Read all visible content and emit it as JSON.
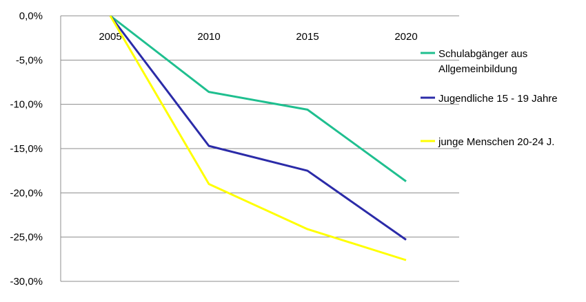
{
  "chart_data": {
    "type": "line",
    "categories": [
      "2005",
      "2010",
      "2015",
      "2020"
    ],
    "y_tick_labels": [
      "0,0%",
      "-5,0%",
      "-10,0%",
      "-15,0%",
      "-20,0%",
      "-25,0%",
      "-30,0%"
    ],
    "y_ticks": [
      0,
      -5,
      -10,
      -15,
      -20,
      -25,
      -30
    ],
    "ylim": [
      -30,
      0
    ],
    "grid": "horizontal",
    "legend_position": "right",
    "series": [
      {
        "name_lines": [
          "Schulabgänger aus",
          "Allgemeinbildung"
        ],
        "color": "#1fbf8f",
        "values": [
          0,
          -8.6,
          -10.6,
          -18.7
        ]
      },
      {
        "name_lines": [
          "Jugendliche 15 - 19 Jahre"
        ],
        "color": "#2b2ba8",
        "values": [
          0,
          -14.7,
          -17.5,
          -25.3
        ]
      },
      {
        "name_lines": [
          "junge Menschen 20-24 J."
        ],
        "color": "#ffff00",
        "values": [
          0,
          -19.0,
          -24.1,
          -27.6
        ]
      }
    ]
  }
}
